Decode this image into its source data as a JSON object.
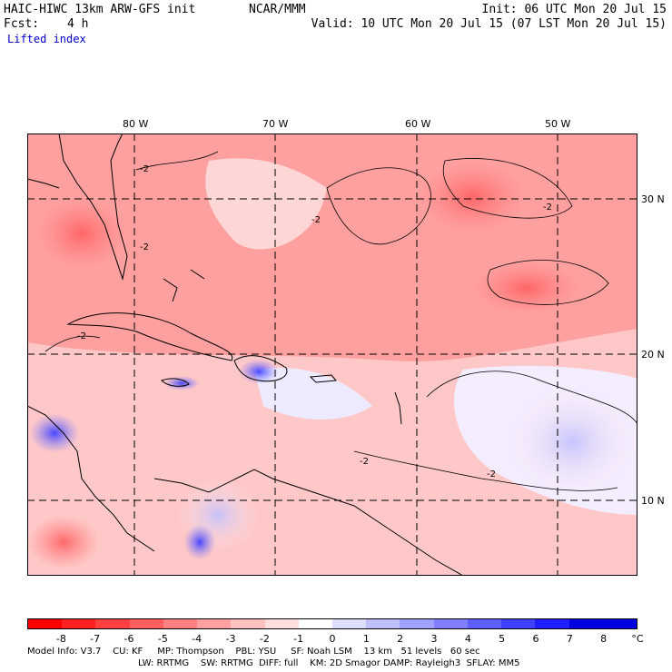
{
  "header": {
    "model": "HAIC-HIWC 13km ARW-GFS init",
    "org": "NCAR/MMM",
    "init": "Init: 06 UTC Mon 20 Jul 15",
    "fcst_label": "Fcst:",
    "fcst_value": "4 h",
    "valid": "Valid: 10 UTC Mon 20 Jul 15 (07 LST Mon 20 Jul 15)",
    "field": "Lifted index"
  },
  "axes": {
    "lon_labels": [
      "80 W",
      "70 W",
      "60 W",
      "50 W"
    ],
    "lat_labels": [
      "30 N",
      "20 N",
      "10 N"
    ],
    "contour_label": "-2"
  },
  "colorbar": {
    "labels": [
      "-8",
      "-7",
      "-6",
      "-5",
      "-4",
      "-3",
      "-2",
      "-1",
      "0",
      "1",
      "2",
      "3",
      "4",
      "5",
      "6",
      "7",
      "8"
    ],
    "unit": "°C",
    "colors": [
      "#ff0000",
      "#ff2020",
      "#ff4040",
      "#ff5f5f",
      "#ff8080",
      "#ffa0a0",
      "#ffc0c0",
      "#ffdede",
      "#ffffff",
      "#dedeff",
      "#c0c0ff",
      "#a0a0ff",
      "#8080ff",
      "#5f5fff",
      "#4040ff",
      "#2020ff",
      "#0000e0"
    ]
  },
  "footer": {
    "line1": "Model Info: V3.7    CU: KF     MP: Thompson    PBL: YSU     SF: Noah LSM    13 km   51 levels   60 sec",
    "line2": "LW: RRTMG    SW: RRTMG  DIFF: full    KM: 2D Smagor DAMP: Rayleigh3  SFLAY: MM5"
  }
}
